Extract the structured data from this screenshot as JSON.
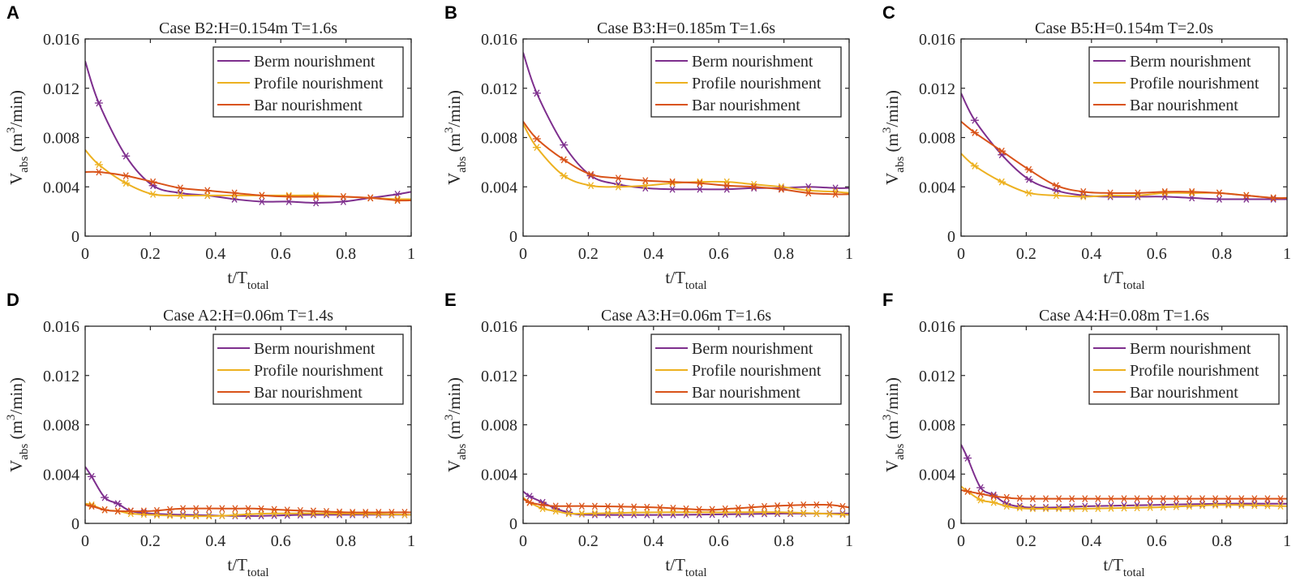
{
  "chart_data": {
    "type": "line",
    "shared": {
      "xlim": [
        0,
        1
      ],
      "ylim": [
        0,
        0.016
      ],
      "xticks": [
        "0",
        "0.2",
        "0.4",
        "0.6",
        "0.8",
        "1"
      ],
      "yticks": [
        "0",
        "0.004",
        "0.008",
        "0.012",
        "0.016"
      ],
      "xlabel": {
        "main": "t/T",
        "sub": "total"
      },
      "ylabel": {
        "main": "V",
        "sub": "abs",
        "unit_pre": " (m",
        "sup": "3",
        "unit_post": "/min)"
      },
      "legend_position": "top-right",
      "grid": false
    },
    "series_styles": [
      {
        "name": "Berm nourishment",
        "color": "#7E2F8E"
      },
      {
        "name": "Profile nourishment",
        "color": "#EDB120"
      },
      {
        "name": "Bar nourishment",
        "color": "#D95319"
      }
    ],
    "panels": [
      {
        "letter": "A",
        "title": "Case B2:H=0.154m T=1.6s",
        "marker_x": [
          0.042,
          0.125,
          0.208,
          0.292,
          0.375,
          0.458,
          0.542,
          0.625,
          0.708,
          0.792,
          0.875,
          0.958
        ],
        "series": [
          {
            "x": [
              0,
              0.042,
              0.125,
              0.208,
              0.292,
              0.375,
              0.458,
              0.542,
              0.625,
              0.708,
              0.792,
              0.875,
              0.958,
              1
            ],
            "y": [
              0.0142,
              0.0108,
              0.0065,
              0.0041,
              0.0035,
              0.0033,
              0.003,
              0.0028,
              0.0028,
              0.0027,
              0.0028,
              0.0031,
              0.0034,
              0.0036
            ]
          },
          {
            "x": [
              0,
              0.042,
              0.125,
              0.208,
              0.292,
              0.375,
              0.458,
              0.542,
              0.625,
              0.708,
              0.792,
              0.875,
              0.958,
              1
            ],
            "y": [
              0.007,
              0.0058,
              0.0043,
              0.0034,
              0.0033,
              0.0033,
              0.0033,
              0.0033,
              0.0033,
              0.0033,
              0.0032,
              0.0031,
              0.003,
              0.003
            ]
          },
          {
            "x": [
              0,
              0.042,
              0.125,
              0.208,
              0.292,
              0.375,
              0.458,
              0.542,
              0.625,
              0.708,
              0.792,
              0.875,
              0.958,
              1
            ],
            "y": [
              0.0052,
              0.0052,
              0.0049,
              0.0044,
              0.0039,
              0.0037,
              0.0035,
              0.0033,
              0.0032,
              0.0032,
              0.0032,
              0.0031,
              0.0029,
              0.0029
            ]
          }
        ]
      },
      {
        "letter": "B",
        "title": "Case B3:H=0.185m T=1.6s",
        "marker_x": [
          0.042,
          0.125,
          0.208,
          0.292,
          0.375,
          0.458,
          0.542,
          0.625,
          0.708,
          0.792,
          0.875,
          0.958
        ],
        "series": [
          {
            "x": [
              0,
              0.042,
              0.125,
              0.208,
              0.292,
              0.375,
              0.458,
              0.542,
              0.625,
              0.708,
              0.792,
              0.875,
              0.958,
              1
            ],
            "y": [
              0.0149,
              0.0116,
              0.0074,
              0.0049,
              0.0042,
              0.0039,
              0.0038,
              0.0038,
              0.0038,
              0.0039,
              0.0039,
              0.004,
              0.0039,
              0.0039
            ]
          },
          {
            "x": [
              0,
              0.042,
              0.125,
              0.208,
              0.292,
              0.375,
              0.458,
              0.542,
              0.625,
              0.708,
              0.792,
              0.875,
              0.958,
              1
            ],
            "y": [
              0.0091,
              0.0072,
              0.0049,
              0.0041,
              0.004,
              0.0041,
              0.0043,
              0.0044,
              0.0044,
              0.0042,
              0.004,
              0.0037,
              0.0036,
              0.0035
            ]
          },
          {
            "x": [
              0,
              0.042,
              0.125,
              0.208,
              0.292,
              0.375,
              0.458,
              0.542,
              0.625,
              0.708,
              0.792,
              0.875,
              0.958,
              1
            ],
            "y": [
              0.0093,
              0.0079,
              0.0062,
              0.005,
              0.0047,
              0.0045,
              0.0044,
              0.0043,
              0.0041,
              0.004,
              0.0038,
              0.0035,
              0.0034,
              0.0034
            ]
          }
        ]
      },
      {
        "letter": "C",
        "title": "Case B5:H=0.154m T=2.0s",
        "marker_x": [
          0.042,
          0.125,
          0.208,
          0.292,
          0.375,
          0.458,
          0.542,
          0.625,
          0.708,
          0.792,
          0.875,
          0.958
        ],
        "series": [
          {
            "x": [
              0,
              0.042,
              0.125,
              0.208,
              0.292,
              0.375,
              0.458,
              0.542,
              0.625,
              0.708,
              0.792,
              0.875,
              0.958,
              1
            ],
            "y": [
              0.0116,
              0.0094,
              0.0066,
              0.0046,
              0.0037,
              0.0033,
              0.0032,
              0.0032,
              0.0032,
              0.0031,
              0.003,
              0.003,
              0.003,
              0.003
            ]
          },
          {
            "x": [
              0,
              0.042,
              0.125,
              0.208,
              0.292,
              0.375,
              0.458,
              0.542,
              0.625,
              0.708,
              0.792,
              0.875,
              0.958,
              1
            ],
            "y": [
              0.0067,
              0.0057,
              0.0044,
              0.0035,
              0.0033,
              0.0032,
              0.0033,
              0.0033,
              0.0035,
              0.0035,
              0.0035,
              0.0033,
              0.0031,
              0.0031
            ]
          },
          {
            "x": [
              0,
              0.042,
              0.125,
              0.208,
              0.292,
              0.375,
              0.458,
              0.542,
              0.625,
              0.708,
              0.792,
              0.875,
              0.958,
              1
            ],
            "y": [
              0.0093,
              0.0084,
              0.0069,
              0.0054,
              0.0041,
              0.0036,
              0.0035,
              0.0035,
              0.0036,
              0.0036,
              0.0035,
              0.0033,
              0.0031,
              0.0031
            ]
          }
        ]
      },
      {
        "letter": "D",
        "title": "Case A2:H=0.06m T=1.4s",
        "marker_x": [
          0.02,
          0.06,
          0.1,
          0.14,
          0.18,
          0.22,
          0.26,
          0.3,
          0.34,
          0.38,
          0.42,
          0.46,
          0.5,
          0.54,
          0.58,
          0.62,
          0.66,
          0.7,
          0.74,
          0.78,
          0.82,
          0.86,
          0.9,
          0.94,
          0.98
        ],
        "series": [
          {
            "x": [
              0,
              0.02,
              0.06,
              0.1,
              0.14,
              0.2,
              0.3,
              0.5,
              0.7,
              1
            ],
            "y": [
              0.0046,
              0.0038,
              0.0021,
              0.0016,
              0.001,
              0.0008,
              0.0007,
              0.0006,
              0.0007,
              0.0007
            ]
          },
          {
            "x": [
              0,
              0.02,
              0.06,
              0.1,
              0.14,
              0.2,
              0.3,
              0.4,
              0.56,
              0.8,
              1
            ],
            "y": [
              0.0016,
              0.0015,
              0.0011,
              0.001,
              0.0008,
              0.0007,
              0.0006,
              0.0006,
              0.0008,
              0.0008,
              0.0007
            ]
          },
          {
            "x": [
              0,
              0.02,
              0.06,
              0.1,
              0.2,
              0.3,
              0.44,
              0.52,
              0.6,
              0.8,
              1
            ],
            "y": [
              0.0015,
              0.0014,
              0.0011,
              0.001,
              0.001,
              0.0012,
              0.0012,
              0.0012,
              0.0011,
              0.0009,
              0.0009
            ]
          }
        ]
      },
      {
        "letter": "E",
        "title": "Case A3:H=0.06m T=1.6s",
        "marker_x": [
          0.02,
          0.06,
          0.1,
          0.14,
          0.18,
          0.22,
          0.26,
          0.3,
          0.34,
          0.38,
          0.42,
          0.46,
          0.5,
          0.54,
          0.58,
          0.62,
          0.66,
          0.7,
          0.74,
          0.78,
          0.82,
          0.86,
          0.9,
          0.94,
          0.98
        ],
        "series": [
          {
            "x": [
              0,
              0.02,
              0.06,
              0.1,
              0.14,
              0.2,
              0.5,
              0.8,
              1
            ],
            "y": [
              0.0026,
              0.0022,
              0.0017,
              0.0012,
              0.0009,
              0.0007,
              0.0007,
              0.0008,
              0.0008
            ]
          },
          {
            "x": [
              0,
              0.02,
              0.06,
              0.1,
              0.14,
              0.2,
              0.4,
              0.6,
              0.8,
              1
            ],
            "y": [
              0.0021,
              0.0017,
              0.0012,
              0.001,
              0.0008,
              0.0008,
              0.0009,
              0.0009,
              0.0009,
              0.0007
            ]
          },
          {
            "x": [
              0,
              0.02,
              0.06,
              0.1,
              0.2,
              0.4,
              0.56,
              0.64,
              0.76,
              0.86,
              0.94,
              1
            ],
            "y": [
              0.002,
              0.0017,
              0.0015,
              0.0014,
              0.0014,
              0.0013,
              0.0011,
              0.0012,
              0.0014,
              0.0015,
              0.0015,
              0.0013
            ]
          }
        ]
      },
      {
        "letter": "F",
        "title": "Case A4:H=0.08m T=1.6s",
        "marker_x": [
          0.02,
          0.06,
          0.1,
          0.14,
          0.18,
          0.22,
          0.26,
          0.3,
          0.34,
          0.38,
          0.42,
          0.46,
          0.5,
          0.54,
          0.58,
          0.62,
          0.66,
          0.7,
          0.74,
          0.78,
          0.82,
          0.86,
          0.9,
          0.94,
          0.98
        ],
        "series": [
          {
            "x": [
              0,
              0.02,
              0.06,
              0.1,
              0.14,
              0.2,
              0.3,
              0.4,
              0.6,
              0.8,
              1
            ],
            "y": [
              0.0064,
              0.0053,
              0.0029,
              0.0023,
              0.0016,
              0.0013,
              0.0013,
              0.0014,
              0.0015,
              0.0016,
              0.0016
            ]
          },
          {
            "x": [
              0,
              0.02,
              0.06,
              0.1,
              0.14,
              0.2,
              0.4,
              0.6,
              0.8,
              1
            ],
            "y": [
              0.003,
              0.0026,
              0.0019,
              0.0017,
              0.0014,
              0.0012,
              0.0012,
              0.0013,
              0.0015,
              0.0014
            ]
          },
          {
            "x": [
              0,
              0.02,
              0.06,
              0.1,
              0.14,
              0.2,
              0.5,
              0.8,
              1
            ],
            "y": [
              0.0027,
              0.0026,
              0.0024,
              0.0022,
              0.0021,
              0.002,
              0.002,
              0.002,
              0.002
            ]
          }
        ]
      }
    ]
  }
}
